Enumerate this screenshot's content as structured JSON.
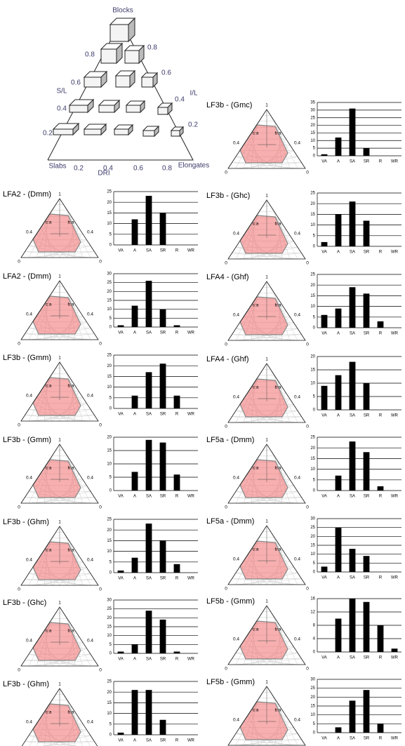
{
  "block_diagram": {
    "top": "Blocks",
    "left_label": "S/L",
    "right_label": "I/L",
    "bottom_left": "Slabs",
    "bottom_right": "Elongates",
    "bottom_axis": "DRI",
    "left_ticks": [
      "0.8",
      "0.6",
      "0.4",
      "0.2"
    ],
    "right_ticks": [
      "0.8",
      "0.6",
      "0.4",
      "0.2"
    ],
    "bottom_ticks": [
      "0.2",
      "0.4",
      "0.6",
      "0.8"
    ]
  },
  "ternary": {
    "apex": "1",
    "left": "c:a",
    "right": "b:a",
    "tick": "0.4",
    "corner": "0"
  },
  "chart_data": [
    {
      "type": "bar",
      "title": "LFA2 - (Dmm)",
      "categories": [
        "VA",
        "A",
        "SA",
        "SR",
        "R",
        "WR"
      ],
      "values": [
        0,
        12,
        23,
        15,
        0,
        0
      ],
      "ylim": [
        0,
        25
      ],
      "yticks": [
        0,
        5,
        10,
        15,
        20,
        25
      ],
      "color": "#000000"
    },
    {
      "type": "bar",
      "title": "LFA2 - (Dmm)",
      "categories": [
        "VA",
        "A",
        "SA",
        "SR",
        "R",
        "WR"
      ],
      "values": [
        1,
        12,
        26,
        10,
        1,
        0
      ],
      "ylim": [
        0,
        30
      ],
      "yticks": [
        0,
        5,
        10,
        15,
        20,
        25,
        30
      ],
      "color": "#000000"
    },
    {
      "type": "bar",
      "title": "LF3b - (Gmm)",
      "categories": [
        "VA",
        "A",
        "SA",
        "SR",
        "R",
        "WR"
      ],
      "values": [
        0,
        6,
        17,
        21,
        6,
        0
      ],
      "ylim": [
        0,
        25
      ],
      "yticks": [
        0,
        5,
        10,
        15,
        20,
        25
      ],
      "color": "#000000"
    },
    {
      "type": "bar",
      "title": "LF3b - (Gmm)",
      "categories": [
        "VA",
        "A",
        "SA",
        "SR",
        "R",
        "WR"
      ],
      "values": [
        0,
        7,
        19,
        18,
        6,
        0
      ],
      "ylim": [
        0,
        20
      ],
      "yticks": [
        0,
        5,
        10,
        15,
        20
      ],
      "color": "#000000"
    },
    {
      "type": "bar",
      "title": "LF3b - (Ghm)",
      "categories": [
        "VA",
        "A",
        "SA",
        "SR",
        "R",
        "WR"
      ],
      "values": [
        1,
        7,
        23,
        15,
        4,
        0
      ],
      "ylim": [
        0,
        25
      ],
      "yticks": [
        0,
        5,
        10,
        15,
        20,
        25
      ],
      "color": "#000000"
    },
    {
      "type": "bar",
      "title": "LF3b - (Ghc)",
      "categories": [
        "VA",
        "A",
        "SA",
        "SR",
        "R",
        "WR"
      ],
      "values": [
        1,
        5,
        24,
        19,
        1,
        0
      ],
      "ylim": [
        0,
        30
      ],
      "yticks": [
        0,
        5,
        10,
        15,
        20,
        25,
        30
      ],
      "color": "#000000"
    },
    {
      "type": "bar",
      "title": "LF3b - (Ghm)",
      "categories": [
        "VA",
        "A",
        "SA",
        "SR",
        "R",
        "WR"
      ],
      "values": [
        1,
        21,
        21,
        7,
        0,
        0
      ],
      "ylim": [
        0,
        25
      ],
      "yticks": [
        0,
        5,
        10,
        15,
        20,
        25
      ],
      "color": "#000000"
    },
    {
      "type": "bar",
      "title": "LF3b - (Gmc)",
      "categories": [
        "VA",
        "A",
        "SA",
        "SR",
        "R",
        "WR"
      ],
      "values": [
        1,
        12,
        31,
        5,
        0,
        0
      ],
      "ylim": [
        0,
        35
      ],
      "yticks": [
        0,
        5,
        10,
        15,
        20,
        25,
        30,
        35
      ],
      "color": "#000000"
    },
    {
      "type": "bar",
      "title": "LF3b - (Ghc)",
      "categories": [
        "VA",
        "A",
        "SA",
        "SR",
        "R",
        "WR"
      ],
      "values": [
        2,
        15,
        21,
        12,
        0,
        0
      ],
      "ylim": [
        0,
        25
      ],
      "yticks": [
        0,
        5,
        10,
        15,
        20,
        25
      ],
      "color": "#000000"
    },
    {
      "type": "bar",
      "title": "LFA4 - (Ghf)",
      "categories": [
        "VA",
        "A",
        "SA",
        "SR",
        "R",
        "WR"
      ],
      "values": [
        6,
        9,
        19,
        16,
        3,
        0
      ],
      "ylim": [
        0,
        25
      ],
      "yticks": [
        0,
        5,
        10,
        15,
        20,
        25
      ],
      "color": "#000000"
    },
    {
      "type": "bar",
      "title": "LFA4 - (Ghf)",
      "categories": [
        "VA",
        "A",
        "SA",
        "SR",
        "R",
        "WR"
      ],
      "values": [
        9,
        13,
        18,
        10,
        0,
        0
      ],
      "ylim": [
        0,
        20
      ],
      "yticks": [
        0,
        5,
        10,
        15,
        20
      ],
      "color": "#000000"
    },
    {
      "type": "bar",
      "title": "LF5a - (Dmm)",
      "categories": [
        "VA",
        "A",
        "SA",
        "SR",
        "R",
        "WR"
      ],
      "values": [
        0,
        7,
        23,
        18,
        2,
        0
      ],
      "ylim": [
        0,
        25
      ],
      "yticks": [
        0,
        5,
        10,
        15,
        20,
        25
      ],
      "color": "#000000"
    },
    {
      "type": "bar",
      "title": "LF5a - (Dmm)",
      "categories": [
        "VA",
        "A",
        "SA",
        "SR",
        "R",
        "WR"
      ],
      "values": [
        3,
        25,
        13,
        9,
        0,
        0
      ],
      "ylim": [
        0,
        30
      ],
      "yticks": [
        0,
        5,
        10,
        15,
        20,
        25,
        30
      ],
      "color": "#000000"
    },
    {
      "type": "bar",
      "title": "LF5b - (Gmm)",
      "categories": [
        "VA",
        "A",
        "SA",
        "SR",
        "R",
        "WR"
      ],
      "values": [
        0,
        10,
        16,
        15,
        8,
        1
      ],
      "ylim": [
        0,
        16
      ],
      "yticks": [
        0,
        4,
        8,
        12,
        16
      ],
      "color": "#000000"
    },
    {
      "type": "bar",
      "title": "LF5b - (Gmm)",
      "categories": [
        "VA",
        "A",
        "SA",
        "SR",
        "R",
        "WR"
      ],
      "values": [
        0,
        3,
        18,
        24,
        5,
        0
      ],
      "ylim": [
        0,
        30
      ],
      "yticks": [
        0,
        5,
        10,
        15,
        20,
        25,
        30
      ],
      "color": "#000000"
    }
  ]
}
